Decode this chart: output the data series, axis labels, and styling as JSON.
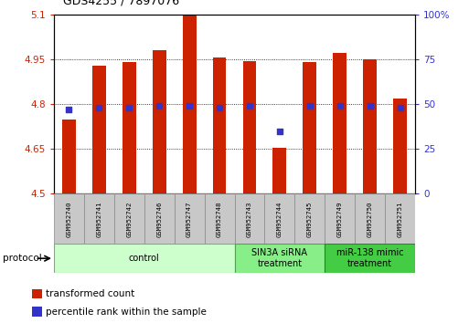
{
  "title": "GDS4255 / 7897076",
  "samples": [
    "GSM952740",
    "GSM952741",
    "GSM952742",
    "GSM952746",
    "GSM952747",
    "GSM952748",
    "GSM952743",
    "GSM952744",
    "GSM952745",
    "GSM952749",
    "GSM952750",
    "GSM952751"
  ],
  "transformed_count": [
    4.75,
    4.93,
    4.94,
    4.98,
    5.1,
    4.955,
    4.945,
    4.655,
    4.94,
    4.97,
    4.95,
    4.82
  ],
  "percentile_rank": [
    47,
    48,
    48,
    49,
    49,
    48,
    49,
    35,
    49,
    49,
    49,
    48
  ],
  "bar_color": "#cc2200",
  "dot_color": "#3333cc",
  "ylim_left": [
    4.5,
    5.1
  ],
  "ylim_right": [
    0,
    100
  ],
  "yticks_left": [
    4.5,
    4.65,
    4.8,
    4.95,
    5.1
  ],
  "yticks_right": [
    0,
    25,
    50,
    75,
    100
  ],
  "ytick_labels_left": [
    "4.5",
    "4.65",
    "4.8",
    "4.95",
    "5.1"
  ],
  "ytick_labels_right": [
    "0",
    "25",
    "50",
    "75",
    "100%"
  ],
  "left_tick_color": "#cc2200",
  "right_tick_color": "#3333cc",
  "groups": [
    {
      "label": "control",
      "start": 0,
      "end": 6,
      "color": "#ccffcc",
      "edge_color": "#66bb66"
    },
    {
      "label": "SIN3A siRNA\ntreatment",
      "start": 6,
      "end": 9,
      "color": "#88ee88",
      "edge_color": "#44aa44"
    },
    {
      "label": "miR-138 mimic\ntreatment",
      "start": 9,
      "end": 12,
      "color": "#44cc44",
      "edge_color": "#228822"
    }
  ],
  "protocol_label": "protocol",
  "legend_items": [
    {
      "color": "#cc2200",
      "label": "transformed count"
    },
    {
      "color": "#3333cc",
      "label": "percentile rank within the sample"
    }
  ],
  "bar_width": 0.45,
  "base_value": 4.5,
  "label_box_color": "#c8c8c8",
  "label_box_edge": "#888888"
}
